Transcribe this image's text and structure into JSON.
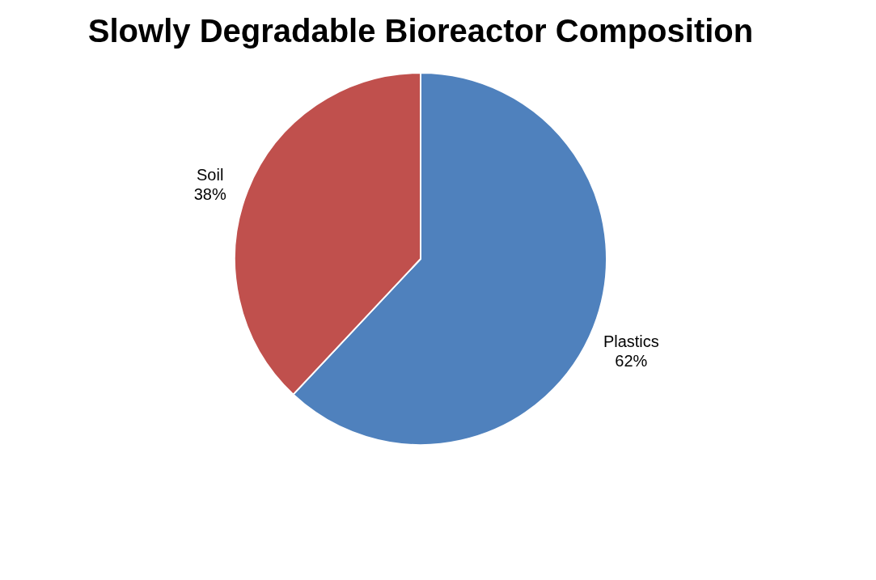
{
  "chart_data": {
    "type": "pie",
    "title": "Slowly Degradable Bioreactor Composition",
    "categories": [
      "Plastics",
      "Soil"
    ],
    "values": [
      62,
      38
    ],
    "colors": [
      "#4f81bd",
      "#c0504d"
    ],
    "value_labels": [
      "62%",
      "38%"
    ],
    "legend": false
  }
}
